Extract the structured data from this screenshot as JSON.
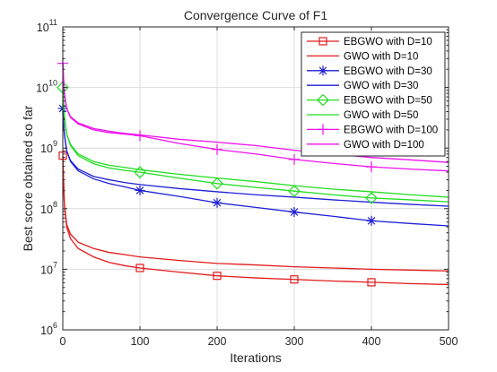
{
  "chart_data": {
    "type": "line",
    "title": "Convergence Curve of F1",
    "xlabel": "Iterations",
    "ylabel": "Best score obtained so far",
    "xlim": [
      0,
      500
    ],
    "ylim": [
      1000000,
      100000000000
    ],
    "yscale": "log",
    "grid": true,
    "legend_position": "top-right",
    "x_ticks": [
      0,
      100,
      200,
      300,
      400,
      500
    ],
    "y_ticks": [
      1000000,
      10000000,
      100000000,
      1000000000,
      10000000000,
      100000000000
    ],
    "y_tick_labels": [
      {
        "base": "10",
        "exp": "6"
      },
      {
        "base": "10",
        "exp": "7"
      },
      {
        "base": "10",
        "exp": "8"
      },
      {
        "base": "10",
        "exp": "9"
      },
      {
        "base": "10",
        "exp": "10"
      },
      {
        "base": "10",
        "exp": "11"
      }
    ],
    "series": [
      {
        "name": "EBGWO with D=10",
        "color": "#e31a1c",
        "marker": "square",
        "x": [
          0,
          2,
          5,
          10,
          20,
          40,
          60,
          80,
          100,
          150,
          200,
          250,
          300,
          350,
          400,
          450,
          500
        ],
        "y": [
          750000000,
          120000000,
          50000000,
          32000000,
          22000000,
          16000000,
          13000000,
          11500000,
          10500000,
          9000000,
          7800000,
          7200000,
          6800000,
          6400000,
          6100000,
          5800000,
          5600000
        ]
      },
      {
        "name": "GWO with D=10",
        "color": "#e31a1c",
        "marker": "none",
        "x": [
          0,
          2,
          5,
          10,
          20,
          40,
          60,
          80,
          100,
          150,
          200,
          250,
          300,
          350,
          400,
          450,
          500
        ],
        "y": [
          750000000,
          120000000,
          55000000,
          38000000,
          28000000,
          22000000,
          19000000,
          17500000,
          16000000,
          14000000,
          12500000,
          11800000,
          11000000,
          10500000,
          10000000,
          9700000,
          9400000
        ]
      },
      {
        "name": "EBGWO with D=30",
        "color": "#1f1fd6",
        "marker": "asterisk",
        "x": [
          0,
          2,
          5,
          10,
          20,
          40,
          60,
          80,
          100,
          150,
          200,
          250,
          300,
          350,
          400,
          450,
          500
        ],
        "y": [
          4500000000,
          1700000000,
          900000000,
          600000000,
          420000000,
          310000000,
          260000000,
          230000000,
          200000000,
          160000000,
          125000000,
          105000000,
          88000000,
          75000000,
          63000000,
          57000000,
          52000000
        ]
      },
      {
        "name": "GWO with D=30",
        "color": "#1f1fd6",
        "marker": "none",
        "x": [
          0,
          2,
          5,
          10,
          20,
          40,
          60,
          80,
          100,
          150,
          200,
          250,
          300,
          350,
          400,
          450,
          500
        ],
        "y": [
          4500000000,
          1700000000,
          900000000,
          620000000,
          450000000,
          340000000,
          300000000,
          270000000,
          250000000,
          215000000,
          190000000,
          170000000,
          155000000,
          140000000,
          128000000,
          118000000,
          110000000
        ]
      },
      {
        "name": "EBGWO with D=50",
        "color": "#22dd22",
        "marker": "diamond",
        "x": [
          0,
          2,
          5,
          10,
          20,
          40,
          60,
          80,
          100,
          150,
          200,
          250,
          300,
          350,
          400,
          450,
          500
        ],
        "y": [
          10000000000,
          3500000000,
          1700000000,
          1100000000,
          750000000,
          550000000,
          470000000,
          430000000,
          400000000,
          320000000,
          260000000,
          225000000,
          195000000,
          170000000,
          150000000,
          140000000,
          130000000
        ]
      },
      {
        "name": "GWO with D=50",
        "color": "#22dd22",
        "marker": "none",
        "x": [
          0,
          2,
          5,
          10,
          20,
          40,
          60,
          80,
          100,
          150,
          200,
          250,
          300,
          350,
          400,
          450,
          500
        ],
        "y": [
          10000000000,
          3500000000,
          1700000000,
          1150000000,
          800000000,
          600000000,
          520000000,
          480000000,
          440000000,
          370000000,
          320000000,
          280000000,
          240000000,
          210000000,
          190000000,
          170000000,
          155000000
        ]
      },
      {
        "name": "EBGWO with D=100",
        "color": "#ee11ee",
        "marker": "plus",
        "x": [
          0,
          2,
          5,
          10,
          20,
          40,
          60,
          80,
          100,
          150,
          200,
          250,
          300,
          350,
          400,
          450,
          500
        ],
        "y": [
          25000000000,
          8000000000,
          4500000000,
          3200000000,
          2500000000,
          2000000000,
          1800000000,
          1700000000,
          1600000000,
          1200000000,
          950000000,
          800000000,
          650000000,
          560000000,
          490000000,
          450000000,
          420000000
        ]
      },
      {
        "name": "GWO with D=100",
        "color": "#ee11ee",
        "marker": "none",
        "x": [
          0,
          2,
          5,
          10,
          20,
          40,
          60,
          80,
          100,
          150,
          200,
          250,
          300,
          350,
          400,
          450,
          500
        ],
        "y": [
          25000000000,
          8000000000,
          4500000000,
          3300000000,
          2600000000,
          2100000000,
          1900000000,
          1750000000,
          1650000000,
          1400000000,
          1250000000,
          1100000000,
          920000000,
          800000000,
          700000000,
          640000000,
          580000000
        ]
      }
    ],
    "marker_x": [
      0,
      100,
      200,
      300,
      400
    ]
  }
}
